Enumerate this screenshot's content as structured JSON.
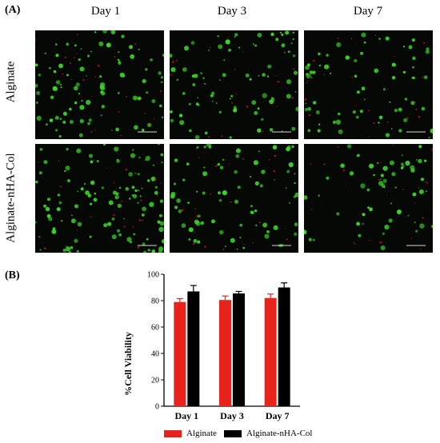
{
  "panels": {
    "a_label": "(A)",
    "b_label": "(B)"
  },
  "micrograph_grid": {
    "columns": [
      "Day 1",
      "Day 3",
      "Day 7"
    ],
    "rows": [
      "Alginate",
      "Alginate-nHA-Col"
    ],
    "colors": {
      "live_stain": "#3dd62a",
      "dead_stain": "#c41c1c",
      "background": "#050805"
    }
  },
  "chart_data": {
    "type": "bar",
    "categories": [
      "Day 1",
      "Day 3",
      "Day 7"
    ],
    "series": [
      {
        "name": "Alginate",
        "values": [
          79,
          80.5,
          82
        ],
        "errors": [
          2.5,
          3,
          3
        ],
        "color": "#e8231c"
      },
      {
        "name": "Alginate-nHA-Col",
        "values": [
          87,
          85.5,
          90
        ],
        "errors": [
          4.5,
          1.5,
          3.5
        ],
        "color": "#000000"
      }
    ],
    "ylabel": "%Cell Viability",
    "xlabel": "",
    "ylim": [
      0,
      100
    ],
    "yticks": [
      "0",
      "20",
      "40",
      "60",
      "80",
      "100"
    ],
    "legend_position": "bottom",
    "grid": false
  }
}
